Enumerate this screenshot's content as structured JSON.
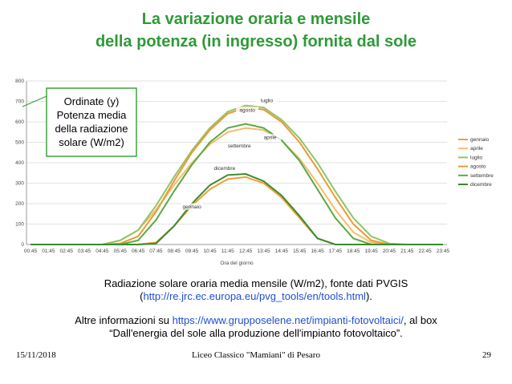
{
  "chart_data": {
    "type": "line",
    "title_lines": [
      "La variazione oraria e mensile",
      "della potenza (in ingresso) fornita dal sole"
    ],
    "x_label": "Ora del giorno",
    "categories": [
      "00:45",
      "01:45",
      "02:45",
      "03:45",
      "04:45",
      "05:45",
      "06:45",
      "07:45",
      "08:45",
      "09:45",
      "10:45",
      "11:45",
      "12:45",
      "13:45",
      "14:45",
      "15:45",
      "16:45",
      "17:45",
      "18:45",
      "19:45",
      "20:45",
      "21:45",
      "22:45",
      "23:45"
    ],
    "ylim": [
      0,
      800
    ],
    "yticks": [
      0,
      100,
      200,
      300,
      400,
      500,
      600,
      700,
      800
    ],
    "grid": true,
    "legend": "right",
    "series": [
      {
        "name": "gennaio",
        "color": "#f0a030",
        "values": [
          0,
          0,
          0,
          0,
          0,
          0,
          0,
          10,
          90,
          190,
          270,
          320,
          330,
          300,
          230,
          130,
          30,
          0,
          0,
          0,
          0,
          0,
          0,
          0
        ]
      },
      {
        "name": "aprile",
        "color": "#f5bc6a",
        "values": [
          0,
          0,
          0,
          0,
          0,
          20,
          70,
          170,
          290,
          400,
          490,
          550,
          570,
          560,
          510,
          420,
          300,
          170,
          60,
          10,
          0,
          0,
          0,
          0
        ]
      },
      {
        "name": "luglio",
        "color": "#92c464",
        "values": [
          0,
          0,
          0,
          0,
          0,
          20,
          70,
          190,
          330,
          460,
          570,
          650,
          680,
          670,
          610,
          520,
          400,
          260,
          130,
          40,
          5,
          0,
          0,
          0
        ]
      },
      {
        "name": "agosto",
        "color": "#e89a38",
        "values": [
          0,
          0,
          0,
          0,
          0,
          5,
          40,
          160,
          310,
          450,
          560,
          640,
          670,
          660,
          600,
          500,
          370,
          230,
          100,
          20,
          0,
          0,
          0,
          0
        ]
      },
      {
        "name": "settembre",
        "color": "#5aaa40",
        "values": [
          0,
          0,
          0,
          0,
          0,
          0,
          20,
          120,
          260,
          390,
          500,
          570,
          590,
          570,
          510,
          410,
          270,
          130,
          30,
          0,
          0,
          0,
          0,
          0
        ]
      },
      {
        "name": "dicembre",
        "color": "#3a8a30",
        "values": [
          0,
          0,
          0,
          0,
          0,
          0,
          0,
          5,
          90,
          200,
          290,
          340,
          345,
          310,
          240,
          140,
          30,
          0,
          0,
          0,
          0,
          0,
          0,
          0
        ]
      }
    ],
    "annotation_lines": [
      "Ordinate (y)",
      "Potenza media",
      "della radiazione",
      "solare (W/m2)"
    ]
  },
  "caption": {
    "line1": "Radiazione solare oraria media mensile (W/m2), fonte dati PVGIS",
    "open": "(",
    "url": "http://re.jrc.ec.europa.eu/pvg_tools/en/tools.html",
    "close": ")."
  },
  "more": {
    "prefix": "Altre informazioni su ",
    "url": "https://www.grupposelene.net/impianti-fotovoltaici/",
    "suffix": ", al box",
    "line2": "“Dall'energia del sole alla produzione dell'impianto fotovoltaico”."
  },
  "footer": {
    "date": "15/11/2018",
    "center": "Liceo Classico \"Mamiani\" di Pesaro",
    "page": "29"
  }
}
